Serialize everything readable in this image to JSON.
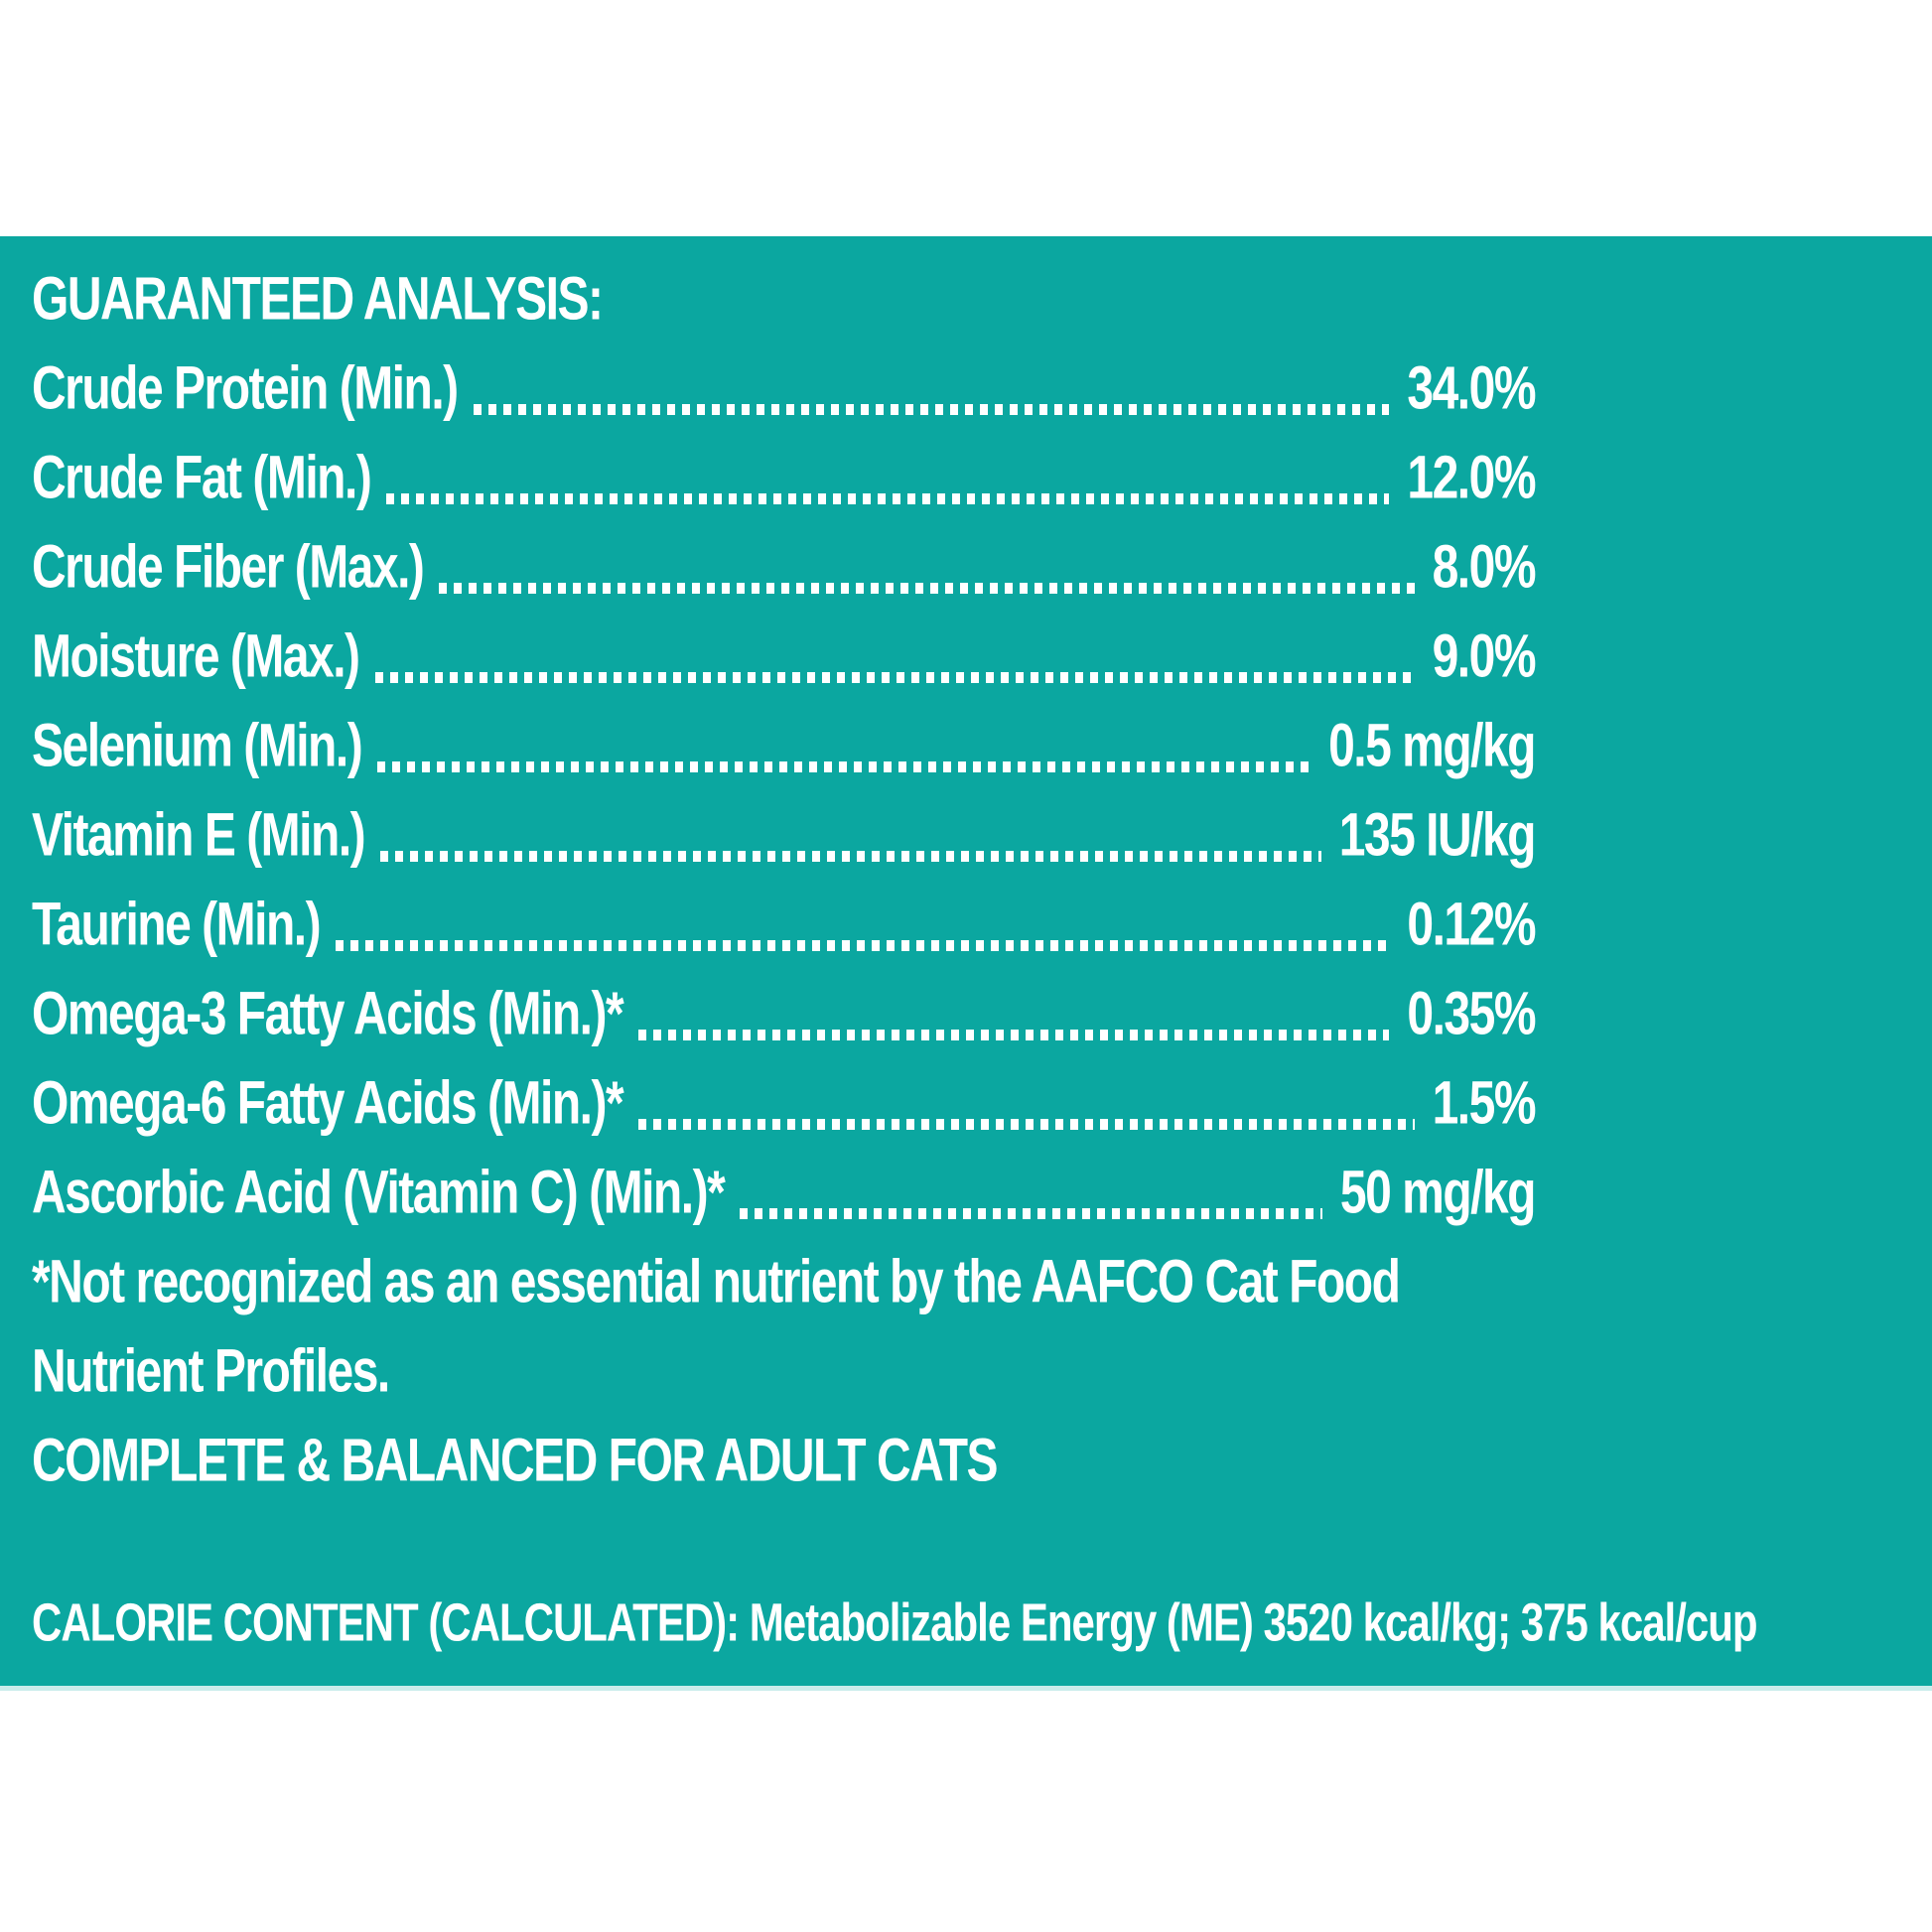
{
  "colors": {
    "panel_background": "#0BA7A0",
    "text": "#FFFFFF",
    "panel_bottom_edge": "#C9ECEB",
    "page_background": "#FFFFFF"
  },
  "header": {
    "title": "GUARANTEED ANALYSIS:"
  },
  "analysis_rows": [
    {
      "label": "Crude Protein (Min.)",
      "value": "34.0%"
    },
    {
      "label": "Crude Fat (Min.)",
      "value": "12.0%"
    },
    {
      "label": "Crude Fiber (Max.)",
      "value": "8.0%"
    },
    {
      "label": "Moisture (Max.)",
      "value": "9.0%"
    },
    {
      "label": "Selenium (Min.)",
      "value": "0.5 mg/kg"
    },
    {
      "label": "Vitamin E (Min.)",
      "value": "135 IU/kg"
    },
    {
      "label": "Taurine (Min.)",
      "value": "0.12%"
    },
    {
      "label": "Omega-3 Fatty Acids (Min.)*",
      "value": "0.35%"
    },
    {
      "label": "Omega-6 Fatty Acids (Min.)*",
      "value": "1.5%"
    },
    {
      "label": "Ascorbic Acid (Vitamin C) (Min.)*",
      "value": "50 mg/kg"
    }
  ],
  "footnotes": {
    "lines": [
      "*Not recognized as an essential nutrient by the AAFCO Cat Food",
      "Nutrient Profiles."
    ]
  },
  "statement": "COMPLETE & BALANCED FOR ADULT CATS",
  "calorie": "CALORIE CONTENT (CALCULATED): Metabolizable Energy (ME) 3520 kcal/kg; 375 kcal/cup"
}
